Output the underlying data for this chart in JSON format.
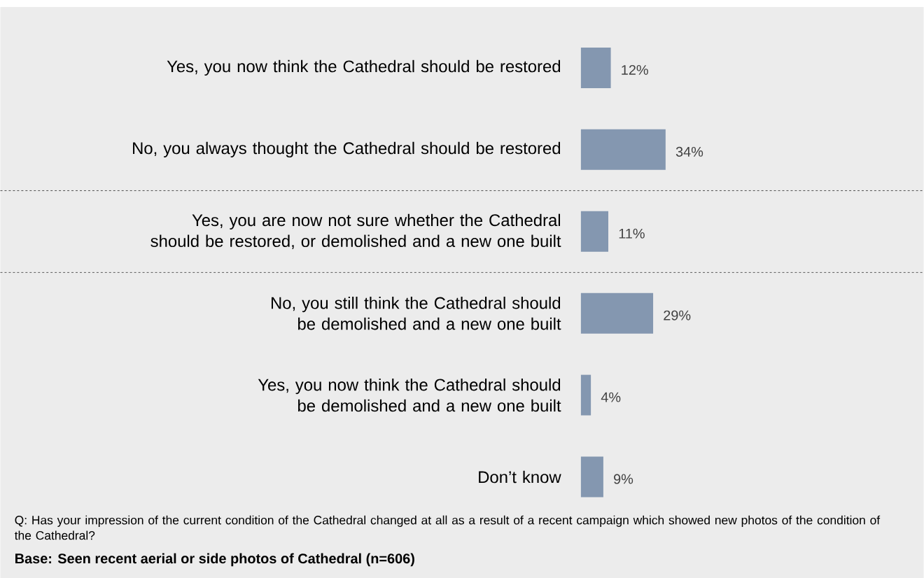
{
  "chart_data": {
    "type": "bar",
    "orientation": "horizontal",
    "categories": [
      "Yes, you now think the Cathedral should be restored",
      "No, you always thought the Cathedral should be restored",
      "Yes, you are now not sure whether the Cathedral should be restored, or demolished and a new one built",
      "No, you still think the Cathedral should be demolished and a new one built",
      "Yes, you now think the Cathedral should be demolished and a new one built",
      "Don’t know"
    ],
    "values": [
      12,
      34,
      11,
      29,
      4,
      9
    ],
    "value_labels": [
      "12%",
      "34%",
      "11%",
      "29%",
      "4%",
      "9%"
    ],
    "color": "#8497b0",
    "annotations": [
      "Q: Has  your impression of the current condition of the Cathedral changed at all as a result of a recent campaign which showed new photos of the condition of the Cathedral?",
      "Base: Seen recent aerial or side photos of Cathedral (n=606)"
    ]
  }
}
